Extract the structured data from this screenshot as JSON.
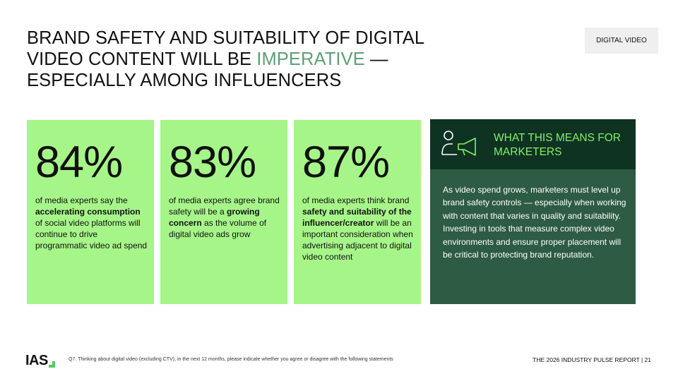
{
  "header": {
    "title_part1": "BRAND SAFETY AND SUITABILITY OF DIGITAL VIDEO CONTENT WILL BE ",
    "title_highlight": "IMPERATIVE",
    "title_part2": " — ESPECIALLY AMONG INFLUENCERS",
    "tag": "DIGITAL VIDEO"
  },
  "stats": [
    {
      "percent": "84%",
      "desc_before": "of media experts say the ",
      "desc_bold": "accelerating consumption",
      "desc_after": " of social video platforms will continue to drive programmatic video ad spend"
    },
    {
      "percent": "83%",
      "desc_before": "of media experts agree brand safety will be a ",
      "desc_bold": "growing concern",
      "desc_after": " as the volume of digital video ads grow"
    },
    {
      "percent": "87%",
      "desc_before": "of media experts think brand ",
      "desc_bold": "safety and suitability of the influencer/creator",
      "desc_after": " will be an important consideration when advertising adjacent to digital video content"
    }
  ],
  "marketers": {
    "title": "WHAT THIS MEANS FOR MARKETERS",
    "icon": "person-megaphone-icon",
    "body": "As video spend grows, marketers must level up brand safety controls — especially when working with content that varies in quality and suitability. Investing in tools that measure complex video environments and ensure proper placement will be critical to protecting brand reputation."
  },
  "footer": {
    "logo": "IAS",
    "footnote": "Q7. Thinking about digital video (excluding CTV), in the next 12 months, please indicate whether you agree or disagree with the following statements",
    "report": "THE 2026 INDUSTRY PULSE REPORT | 21"
  },
  "colors": {
    "card_green": "#a6f589",
    "highlight_green": "#5e9f76",
    "panel_dark": "#0f3322",
    "panel_mid": "#2d5b44",
    "accent_light_green": "#86ee6a"
  }
}
